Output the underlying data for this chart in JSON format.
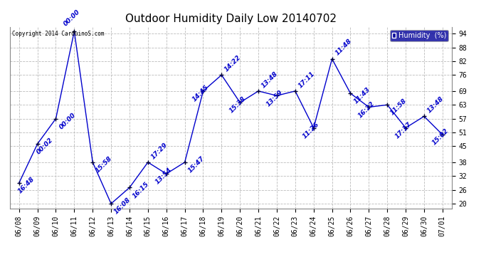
{
  "title": "Outdoor Humidity Daily Low 20140702",
  "copyright_text": "Copyright 2014 CarduinoS.com",
  "legend_label": "Humidity  (%)",
  "x_labels": [
    "06/08",
    "06/09",
    "06/10",
    "06/11",
    "06/12",
    "06/13",
    "06/14",
    "06/15",
    "06/16",
    "06/17",
    "06/18",
    "06/19",
    "06/20",
    "06/21",
    "06/22",
    "06/23",
    "06/24",
    "06/25",
    "06/26",
    "06/27",
    "06/28",
    "06/29",
    "06/30",
    "07/01"
  ],
  "y_values": [
    29,
    46,
    57,
    95,
    38,
    20,
    27,
    38,
    33,
    38,
    69,
    76,
    64,
    69,
    67,
    69,
    53,
    83,
    68,
    62,
    63,
    53,
    58,
    50
  ],
  "point_labels": [
    "16:48",
    "00:02",
    "00:00",
    "00:00",
    "15:58",
    "16:08",
    "16:15",
    "17:29",
    "13:54",
    "15:47",
    "14:45",
    "14:22",
    "15:38",
    "13:48",
    "13:59",
    "17:11",
    "11:26",
    "11:48",
    "11:43",
    "16:22",
    "11:58",
    "17:17",
    "13:48",
    "15:02"
  ],
  "y_ticks": [
    20,
    26,
    32,
    38,
    45,
    51,
    57,
    63,
    69,
    76,
    82,
    88,
    94
  ],
  "ylim": [
    18,
    97
  ],
  "line_color": "#0000CC",
  "marker_color": "#000033",
  "bg_color": "#ffffff",
  "plot_bg_color": "#ffffff",
  "grid_color": "#bbbbbb",
  "title_fontsize": 11,
  "tick_fontsize": 7,
  "label_fontsize": 6.5
}
